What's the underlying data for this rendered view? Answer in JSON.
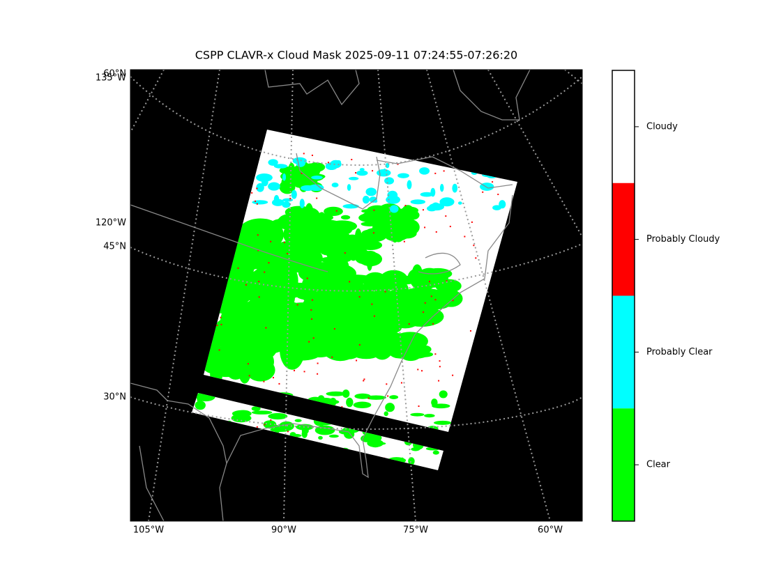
{
  "title": "CSPP CLAVR-x Cloud Mask 2025-09-11 07:24:55-07:26:20",
  "map": {
    "left_labels": [
      "60°N",
      "135°W",
      "120°W",
      "45°N",
      "30°N"
    ],
    "bottom_labels": [
      "105°W",
      "90°W",
      "75°W",
      "60°W"
    ]
  },
  "legend": {
    "items": [
      {
        "label": "Cloudy",
        "color": "#ffffff"
      },
      {
        "label": "Probably Cloudy",
        "color": "#ff0000"
      },
      {
        "label": "Probably Clear",
        "color": "#00ffff"
      },
      {
        "label": "Clear",
        "color": "#00ff00"
      }
    ]
  }
}
